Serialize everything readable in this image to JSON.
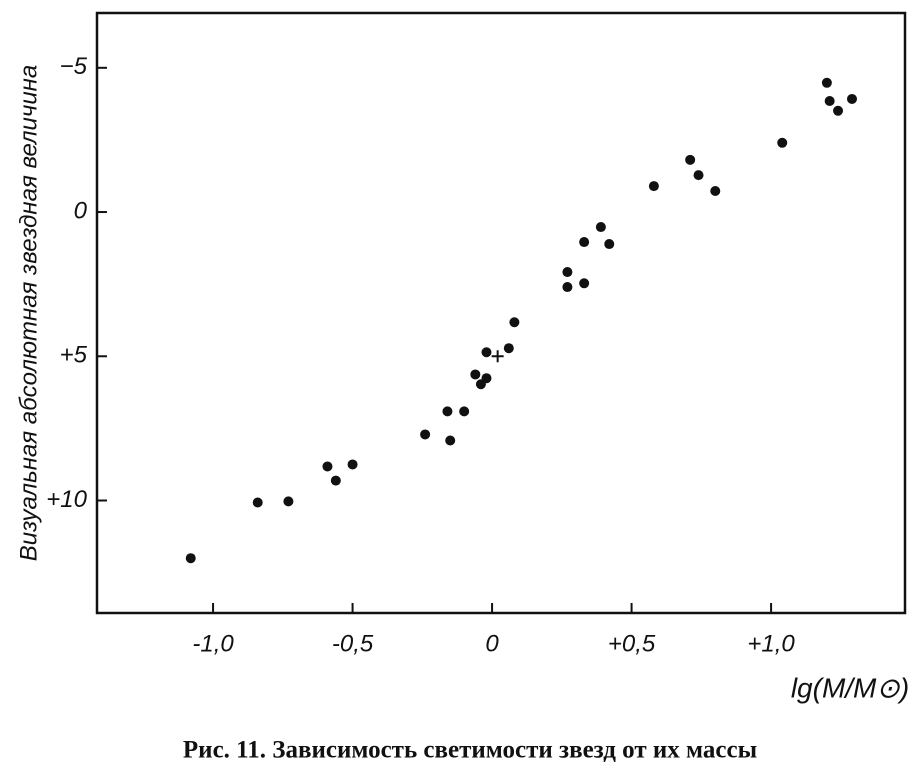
{
  "chart_data": {
    "type": "scatter",
    "title": "Рис. 11. Зависимость светимости звезд от их массы",
    "x_label": "lg(M/M⊙)",
    "y_label": "Визуальная абсолютная звездная величина",
    "series": [
      {
        "marker": "dot",
        "color": "#111111",
        "x": [
          -1.08,
          -0.84,
          -0.73,
          -0.59,
          -0.56,
          -0.5,
          -0.24,
          -0.16,
          -0.15,
          -0.1,
          -0.06,
          -0.04,
          -0.02,
          -0.02,
          0.06,
          0.08,
          0.27,
          0.27,
          0.33,
          0.33,
          0.39,
          0.42,
          0.58,
          0.71,
          0.74,
          0.8,
          1.04,
          1.2,
          1.21,
          1.24,
          1.29
        ],
        "values": [
          12.0,
          10.07,
          10.03,
          8.82,
          9.31,
          8.75,
          7.71,
          6.91,
          7.92,
          6.91,
          5.63,
          5.97,
          5.76,
          4.86,
          4.72,
          3.82,
          2.6,
          2.08,
          2.47,
          1.04,
          0.52,
          1.11,
          -0.9,
          -1.81,
          -1.28,
          -0.73,
          -2.4,
          -4.48,
          -3.85,
          -3.51,
          -3.92
        ]
      },
      {
        "marker": "plus",
        "color": "#111111",
        "x": [
          0.02
        ],
        "values": [
          5.0
        ]
      }
    ],
    "xlim": [
      -1.416,
      1.48
    ],
    "ylim": [
      13.9,
      -6.9
    ],
    "xticks": [
      {
        "value": -1.0,
        "label": "-1,0"
      },
      {
        "value": -0.5,
        "label": "-0,5"
      },
      0,
      {
        "value": 0.5,
        "label": "+0,5"
      },
      {
        "value": 1.0,
        "label": "+1,0"
      }
    ],
    "yticks": [
      {
        "value": -5,
        "label": "−5"
      },
      0,
      {
        "value": 5,
        "label": "+5"
      },
      {
        "value": 10,
        "label": "+10"
      }
    ]
  }
}
